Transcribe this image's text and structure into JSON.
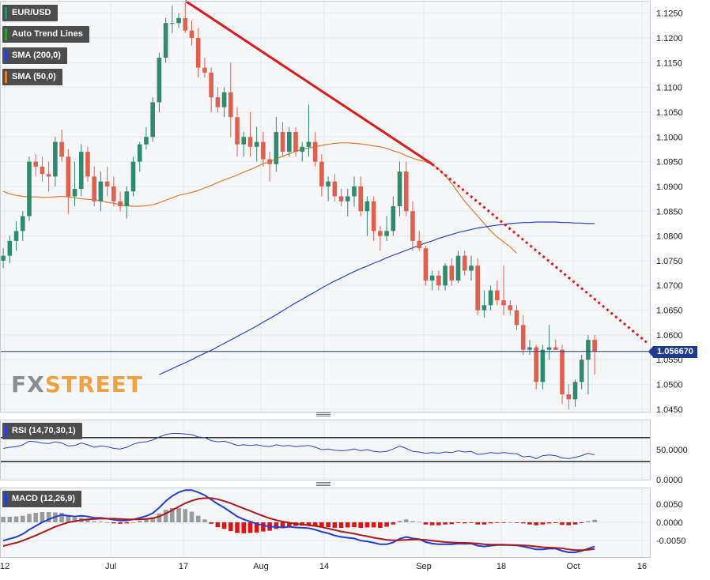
{
  "legend": {
    "symbol": "EUR/USD",
    "trend": "Auto Trend Lines",
    "sma200": "SMA (200,0)",
    "sma50": "SMA (50,0)",
    "rsi": "RSI (14,70,30,1)",
    "macd": "MACD (12,26,9)"
  },
  "price_tag": "1.056670",
  "watermark": {
    "left": "FX",
    "right": "STREET"
  },
  "colors": {
    "up": "#2e8b6e",
    "down": "#e0604f",
    "sma200": "#2443d6",
    "sma50": "#e07a2c",
    "trend": "#e01919",
    "macd_line": "#1b3fe0",
    "signal_line": "#b01818",
    "hist_pos": "#9a9a9a",
    "hist_neg": "#e01212",
    "rsi_line": "#2443d6",
    "price_line": "#1f3a93"
  },
  "chart_data": [
    {
      "type": "candlestick",
      "title": "EUR/USD",
      "ylim": [
        1.0445,
        1.1275
      ],
      "yticks": [
        "1.1250",
        "1.1200",
        "1.1150",
        "1.1100",
        "1.1050",
        "1.1000",
        "1.0950",
        "1.0900",
        "1.0850",
        "1.0800",
        "1.0750",
        "1.0700",
        "1.0650",
        "1.0600",
        "1.0550",
        "1.0500",
        "1.0450"
      ],
      "xticks": [
        "12",
        "Jul",
        "17",
        "Aug",
        "14",
        "Sep",
        "18",
        "Oct",
        "16"
      ],
      "current_price": 1.05667,
      "ohlc": [
        [
          1.075,
          1.0775,
          1.0735,
          1.076
        ],
        [
          1.076,
          1.08,
          1.0745,
          1.079
        ],
        [
          1.079,
          1.083,
          1.077,
          1.081
        ],
        [
          1.081,
          1.085,
          1.079,
          1.084
        ],
        [
          1.084,
          1.096,
          1.083,
          1.095
        ],
        [
          1.095,
          1.0965,
          1.092,
          1.094
        ],
        [
          1.094,
          1.096,
          1.091,
          1.0925
        ],
        [
          1.0925,
          1.095,
          1.089,
          1.092
        ],
        [
          1.092,
          1.1,
          1.09,
          1.099
        ],
        [
          1.099,
          1.1015,
          1.095,
          1.096
        ],
        [
          1.096,
          1.0975,
          1.0845,
          1.088
        ],
        [
          1.088,
          1.095,
          1.086,
          1.0895
        ],
        [
          1.0895,
          1.0985,
          1.088,
          1.097
        ],
        [
          1.097,
          1.098,
          1.091,
          1.092
        ],
        [
          1.092,
          1.094,
          1.086,
          1.087
        ],
        [
          1.087,
          1.093,
          1.085,
          1.091
        ],
        [
          1.091,
          1.094,
          1.088,
          1.09
        ],
        [
          1.09,
          1.092,
          1.086,
          1.087
        ],
        [
          1.087,
          1.089,
          1.085,
          1.086
        ],
        [
          1.086,
          1.09,
          1.0835,
          1.089
        ],
        [
          1.089,
          1.096,
          1.088,
          1.095
        ],
        [
          1.095,
          1.099,
          1.093,
          1.0985
        ],
        [
          1.0985,
          1.102,
          1.0975,
          1.1
        ],
        [
          1.1,
          1.108,
          1.099,
          1.107
        ],
        [
          1.107,
          1.117,
          1.105,
          1.116
        ],
        [
          1.116,
          1.124,
          1.115,
          1.123
        ],
        [
          1.123,
          1.1265,
          1.121,
          1.123
        ],
        [
          1.123,
          1.125,
          1.122,
          1.124
        ],
        [
          1.124,
          1.127,
          1.121,
          1.1215
        ],
        [
          1.1215,
          1.1235,
          1.1185,
          1.12
        ],
        [
          1.12,
          1.122,
          1.112,
          1.114
        ],
        [
          1.114,
          1.116,
          1.112,
          1.113
        ],
        [
          1.113,
          1.114,
          1.105,
          1.108
        ],
        [
          1.108,
          1.11,
          1.105,
          1.106
        ],
        [
          1.106,
          1.11,
          1.104,
          1.109
        ],
        [
          1.109,
          1.115,
          1.1,
          1.104
        ],
        [
          1.104,
          1.106,
          1.096,
          1.0985
        ],
        [
          1.0985,
          1.101,
          1.096,
          1.1
        ],
        [
          1.1,
          1.105,
          1.096,
          1.098
        ],
        [
          1.098,
          1.102,
          1.095,
          1.099
        ],
        [
          1.099,
          1.101,
          1.094,
          1.0955
        ],
        [
          1.0955,
          1.097,
          1.091,
          1.0945
        ],
        [
          1.0945,
          1.104,
          1.093,
          1.101
        ],
        [
          1.101,
          1.103,
          1.096,
          1.097
        ],
        [
          1.097,
          1.102,
          1.096,
          1.101
        ],
        [
          1.101,
          1.102,
          1.096,
          1.097
        ],
        [
          1.097,
          1.099,
          1.095,
          1.098
        ],
        [
          1.098,
          1.1065,
          1.096,
          1.099
        ],
        [
          1.099,
          1.101,
          1.094,
          1.095
        ],
        [
          1.095,
          1.0965,
          1.088,
          1.09
        ],
        [
          1.09,
          1.092,
          1.087,
          1.091
        ],
        [
          1.091,
          1.0925,
          1.087,
          1.088
        ],
        [
          1.088,
          1.0895,
          1.086,
          1.087
        ],
        [
          1.087,
          1.0895,
          1.084,
          1.088
        ],
        [
          1.088,
          1.092,
          1.086,
          1.09
        ],
        [
          1.09,
          1.092,
          1.084,
          1.085
        ],
        [
          1.085,
          1.088,
          1.08,
          1.087
        ],
        [
          1.087,
          1.088,
          1.079,
          1.081
        ],
        [
          1.081,
          1.082,
          1.077,
          1.08
        ],
        [
          1.08,
          1.084,
          1.079,
          1.081
        ],
        [
          1.081,
          1.088,
          1.08,
          1.086
        ],
        [
          1.086,
          1.095,
          1.084,
          1.093
        ],
        [
          1.093,
          1.095,
          1.084,
          1.085
        ],
        [
          1.085,
          1.087,
          1.077,
          1.079
        ],
        [
          1.079,
          1.081,
          1.077,
          1.0775
        ],
        [
          1.0775,
          1.078,
          1.07,
          1.071
        ],
        [
          1.071,
          1.073,
          1.069,
          1.072
        ],
        [
          1.072,
          1.073,
          1.069,
          1.07
        ],
        [
          1.07,
          1.0745,
          1.069,
          1.074
        ],
        [
          1.074,
          1.0755,
          1.07,
          1.071
        ],
        [
          1.071,
          1.077,
          1.0705,
          1.076
        ],
        [
          1.076,
          1.077,
          1.072,
          1.073
        ],
        [
          1.073,
          1.076,
          1.071,
          1.074
        ],
        [
          1.074,
          1.0755,
          1.064,
          1.065
        ],
        [
          1.065,
          1.069,
          1.0635,
          1.066
        ],
        [
          1.066,
          1.07,
          1.065,
          1.069
        ],
        [
          1.069,
          1.071,
          1.066,
          1.067
        ],
        [
          1.067,
          1.074,
          1.064,
          1.066
        ],
        [
          1.066,
          1.067,
          1.064,
          1.065
        ],
        [
          1.065,
          1.066,
          1.061,
          1.062
        ],
        [
          1.062,
          1.064,
          1.056,
          1.057
        ],
        [
          1.057,
          1.059,
          1.056,
          1.0575
        ],
        [
          1.0575,
          1.058,
          1.049,
          1.0505
        ],
        [
          1.0505,
          1.058,
          1.049,
          1.057
        ],
        [
          1.057,
          1.062,
          1.055,
          1.0575
        ],
        [
          1.0575,
          1.059,
          1.057,
          1.057
        ],
        [
          1.057,
          1.058,
          1.046,
          1.048
        ],
        [
          1.048,
          1.05,
          1.045,
          1.047
        ],
        [
          1.047,
          1.051,
          1.0455,
          1.0505
        ],
        [
          1.0505,
          1.056,
          1.049,
          1.055
        ],
        [
          1.055,
          1.06,
          1.048,
          1.059
        ],
        [
          1.059,
          1.06,
          1.052,
          1.0567
        ]
      ],
      "sma50": [
        1.089,
        1.0885,
        1.0882,
        1.088,
        1.0879,
        1.0879,
        1.0878,
        1.0878,
        1.0879,
        1.088,
        1.0879,
        1.0877,
        1.0875,
        1.0874,
        1.0873,
        1.0871,
        1.0868,
        1.0866,
        1.0863,
        1.0861,
        1.086,
        1.086,
        1.0861,
        1.0863,
        1.0867,
        1.0872,
        1.0877,
        1.0882,
        1.0885,
        1.0888,
        1.0892,
        1.0897,
        1.0902,
        1.0908,
        1.0913,
        1.0918,
        1.0923,
        1.0929,
        1.0934,
        1.094,
        1.0946,
        1.095,
        1.0956,
        1.0961,
        1.0966,
        1.0971,
        1.0975,
        1.0978,
        1.098,
        1.0983,
        1.0985,
        1.0987,
        1.0988,
        1.0988,
        1.0987,
        1.0986,
        1.0984,
        1.0982,
        1.098,
        1.0977,
        1.0972,
        1.0968,
        1.0962,
        1.0957,
        1.0953,
        1.095,
        1.0945,
        1.0935,
        1.0922,
        1.0906,
        1.0888,
        1.087,
        1.0855,
        1.084,
        1.0825,
        1.081,
        1.0798,
        1.0788,
        1.0778,
        1.0765
      ],
      "sma200": [
        1.052,
        1.0526,
        1.0532,
        1.0538,
        1.0544,
        1.055,
        1.0557,
        1.0563,
        1.0569,
        1.0576,
        1.0583,
        1.059,
        1.0597,
        1.0604,
        1.0611,
        1.0618,
        1.0626,
        1.0633,
        1.0641,
        1.0649,
        1.0657,
        1.0665,
        1.0672,
        1.068,
        1.0687,
        1.0695,
        1.0702,
        1.0709,
        1.0715,
        1.0722,
        1.0728,
        1.0734,
        1.0739,
        1.0745,
        1.075,
        1.0756,
        1.0761,
        1.0766,
        1.0771,
        1.0776,
        1.0781,
        1.0786,
        1.079,
        1.0795,
        1.0799,
        1.0803,
        1.0807,
        1.081,
        1.0813,
        1.0816,
        1.0818,
        1.082,
        1.0822,
        1.0823,
        1.0825,
        1.0826,
        1.0827,
        1.0827,
        1.0828,
        1.0828,
        1.0828,
        1.0828,
        1.0827,
        1.0827,
        1.0826,
        1.0826,
        1.0825,
        1.0825
      ],
      "trendline": {
        "from": [
          28,
          1.1275
        ],
        "break": [
          66,
          1.0945
        ],
        "to": [
          99,
          1.0585
        ]
      }
    },
    {
      "type": "line",
      "title": "RSI (14,70,30,1)",
      "ylim": [
        0,
        100
      ],
      "yticks": [
        "50.0000",
        "0.0000"
      ],
      "levels": [
        70,
        30
      ],
      "values": [
        52,
        54,
        55,
        58,
        64,
        63,
        61,
        60,
        63,
        61,
        56,
        57,
        61,
        58,
        54,
        56,
        55,
        52,
        51,
        54,
        59,
        62,
        63,
        66,
        71,
        75,
        77,
        77,
        76,
        75,
        71,
        70,
        65,
        63,
        64,
        61,
        57,
        58,
        57,
        58,
        56,
        55,
        58,
        56,
        57,
        55,
        56,
        57,
        54,
        50,
        51,
        49,
        48,
        49,
        51,
        48,
        50,
        47,
        46,
        47,
        51,
        56,
        52,
        47,
        46,
        44,
        45,
        44,
        46,
        45,
        48,
        46,
        47,
        42,
        43,
        45,
        44,
        45,
        44,
        43,
        38,
        39,
        35,
        40,
        41,
        40,
        36,
        35,
        37,
        40,
        44,
        41
      ]
    },
    {
      "type": "line",
      "title": "MACD (12,26,9)",
      "ylim": [
        -0.0095,
        0.0095
      ],
      "yticks": [
        "0.0050",
        "0.0000",
        "-0.0050"
      ],
      "macd": [
        -0.005,
        -0.0045,
        -0.004,
        -0.0032,
        -0.002,
        -0.001,
        0.0,
        0.0008,
        0.0015,
        0.002,
        0.0018,
        0.0016,
        0.0018,
        0.0016,
        0.0012,
        0.0012,
        0.001,
        0.0007,
        0.0005,
        0.0005,
        0.0008,
        0.0012,
        0.0017,
        0.0025,
        0.004,
        0.0058,
        0.0072,
        0.0082,
        0.0088,
        0.0088,
        0.0082,
        0.0074,
        0.0062,
        0.005,
        0.004,
        0.0028,
        0.0016,
        0.0008,
        0.0002,
        -0.0004,
        -0.0008,
        -0.0012,
        -0.0012,
        -0.0014,
        -0.0012,
        -0.0014,
        -0.0015,
        -0.0016,
        -0.002,
        -0.0026,
        -0.003,
        -0.0036,
        -0.004,
        -0.0042,
        -0.0044,
        -0.005,
        -0.0052,
        -0.0056,
        -0.006,
        -0.006,
        -0.0055,
        -0.0045,
        -0.004,
        -0.0044,
        -0.0046,
        -0.0054,
        -0.0058,
        -0.006,
        -0.006,
        -0.006,
        -0.0058,
        -0.0059,
        -0.0058,
        -0.0064,
        -0.0066,
        -0.0064,
        -0.0062,
        -0.0062,
        -0.0062,
        -0.0063,
        -0.0066,
        -0.007,
        -0.0074,
        -0.0074,
        -0.0072,
        -0.0072,
        -0.0078,
        -0.0082,
        -0.0082,
        -0.0078,
        -0.0072,
        -0.0066
      ],
      "signal": [
        -0.0065,
        -0.006,
        -0.0056,
        -0.005,
        -0.0043,
        -0.0036,
        -0.0028,
        -0.002,
        -0.0012,
        -0.0006,
        0.0,
        0.0003,
        0.0006,
        0.0008,
        0.0009,
        0.001,
        0.001,
        0.001,
        0.0009,
        0.0008,
        0.0008,
        0.0008,
        0.0009,
        0.0011,
        0.0016,
        0.0024,
        0.0033,
        0.0043,
        0.0052,
        0.0059,
        0.0064,
        0.0066,
        0.0066,
        0.0063,
        0.0058,
        0.0052,
        0.0045,
        0.0038,
        0.0031,
        0.0024,
        0.0017,
        0.0011,
        0.0006,
        0.0002,
        -0.0001,
        -0.0004,
        -0.0006,
        -0.0008,
        -0.001,
        -0.0013,
        -0.0017,
        -0.0021,
        -0.0025,
        -0.0028,
        -0.0031,
        -0.0035,
        -0.0038,
        -0.0042,
        -0.0045,
        -0.0048,
        -0.0049,
        -0.0049,
        -0.0048,
        -0.0047,
        -0.0047,
        -0.0048,
        -0.005,
        -0.0052,
        -0.0054,
        -0.0055,
        -0.0056,
        -0.0056,
        -0.0057,
        -0.0058,
        -0.006,
        -0.0061,
        -0.0061,
        -0.0061,
        -0.0062,
        -0.0062,
        -0.0063,
        -0.0064,
        -0.0066,
        -0.0068,
        -0.0069,
        -0.007,
        -0.0071,
        -0.0074,
        -0.0076,
        -0.0076,
        -0.0075,
        -0.0073
      ]
    }
  ]
}
